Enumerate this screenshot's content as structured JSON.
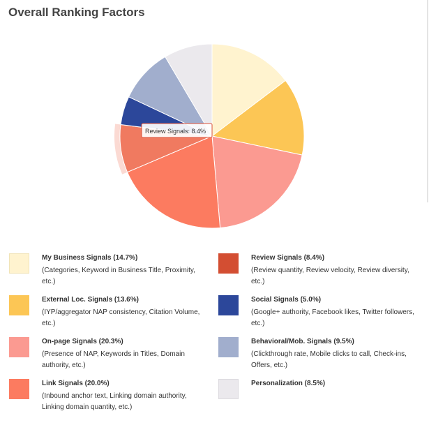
{
  "title": "Overall Ranking Factors",
  "tooltip": {
    "text": "Review Signals: 8.4%"
  },
  "chart_data": {
    "type": "pie",
    "title": "Overall Ranking Factors",
    "slices": [
      {
        "name": "My Business Signals",
        "value": 14.7,
        "color": "#fff3cf",
        "highlighted": false
      },
      {
        "name": "External Loc. Signals",
        "value": 13.6,
        "color": "#fcc655",
        "highlighted": false
      },
      {
        "name": "On-page Signals",
        "value": 20.3,
        "color": "#fb9a91",
        "highlighted": false
      },
      {
        "name": "Link Signals",
        "value": 20.0,
        "color": "#fc7b60",
        "highlighted": false
      },
      {
        "name": "Review Signals",
        "value": 8.4,
        "color": "#f07a60",
        "highlighted": true
      },
      {
        "name": "Social Signals",
        "value": 5.0,
        "color": "#2c479a",
        "highlighted": false
      },
      {
        "name": "Behavioral/Mob. Signals",
        "value": 9.5,
        "color": "#a1aecd",
        "highlighted": false
      },
      {
        "name": "Personalization",
        "value": 8.5,
        "color": "#ebe9ed",
        "highlighted": false
      }
    ]
  },
  "legend": {
    "items": [
      {
        "title": "My Business Signals (14.7%)",
        "desc": "(Categories, Keyword in Business Title, Proximity, etc.)",
        "color": "#fff3cf",
        "border": "#f1e4b8"
      },
      {
        "title": "Review Signals (8.4%)",
        "desc": "(Review quantity, Review velocity, Review diversity, etc.)",
        "color": "#d34e32",
        "border": "#d34e32"
      },
      {
        "title": "External Loc. Signals (13.6%)",
        "desc": "(IYP/aggregator NAP consistency, Citation Volume, etc.)",
        "color": "#fcc655",
        "border": "#fcc655"
      },
      {
        "title": "Social Signals (5.0%)",
        "desc": "(Google+ authority, Facebook likes, Twitter followers, etc.)",
        "color": "#2c479a",
        "border": "#2c479a"
      },
      {
        "title": "On-page Signals (20.3%)",
        "desc": "(Presence of NAP, Keywords in Titles, Domain authority, etc.)",
        "color": "#fb9a91",
        "border": "#fb9a91"
      },
      {
        "title": "Behavioral/Mob. Signals (9.5%)",
        "desc": "(Clickthrough rate, Mobile clicks to call, Check-ins, Offers, etc.)",
        "color": "#a1aecd",
        "border": "#a1aecd"
      },
      {
        "title": "Link Signals (20.0%)",
        "desc": "(Inbound anchor text, Linking domain authority, Linking domain quantity, etc.)",
        "color": "#fc7b60",
        "border": "#fc7b60"
      },
      {
        "title": "Personalization (8.5%)",
        "desc": "",
        "color": "#ebe9ed",
        "border": "#dcdadf"
      }
    ]
  }
}
